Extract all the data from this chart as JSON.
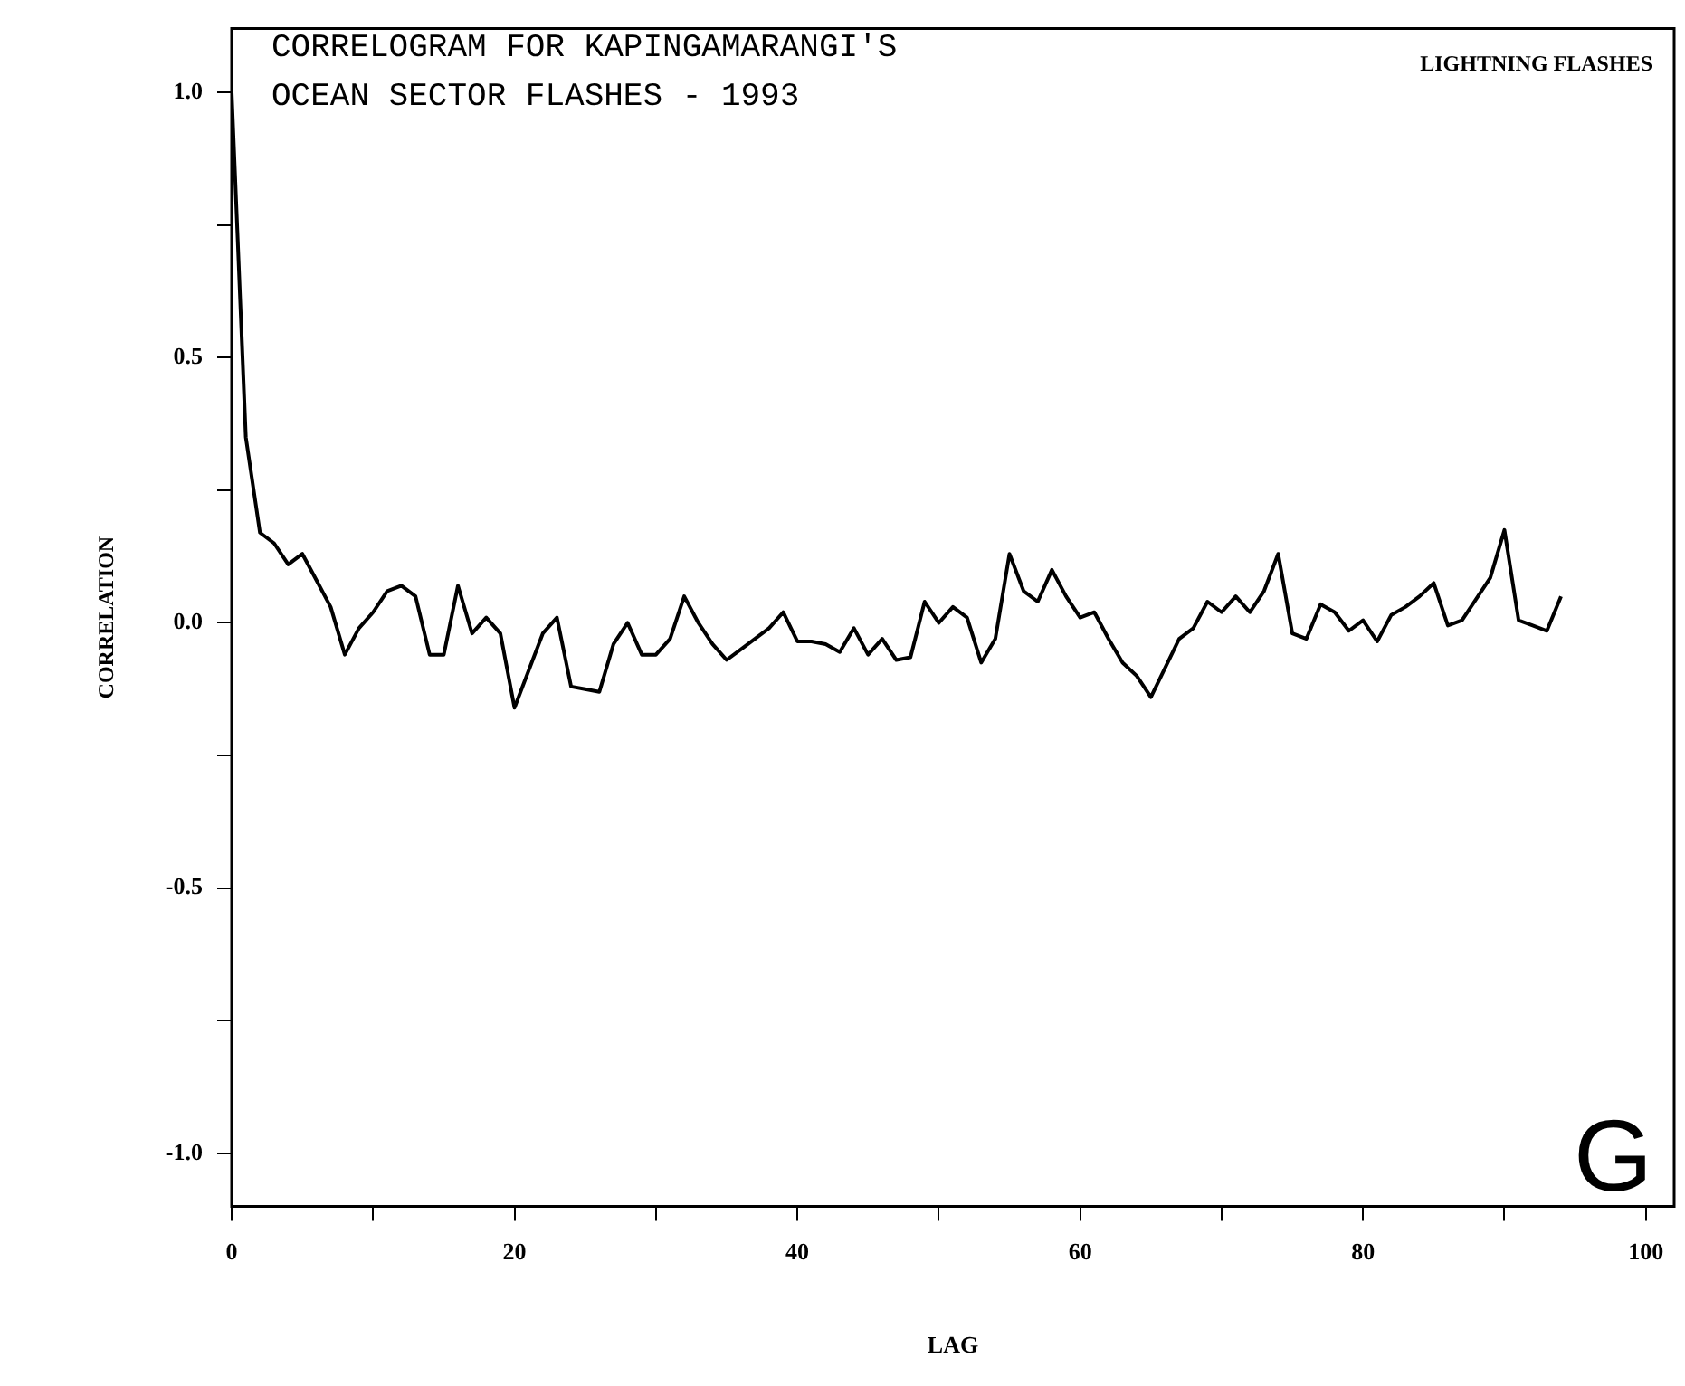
{
  "chart_data": {
    "type": "line",
    "title": "CORRELOGRAM FOR KAPINGAMARANGI'S OCEAN SECTOR FLASHES - 1993",
    "xlabel": "LAG",
    "ylabel": "CORRELATION",
    "annotations": [
      "LIGHTNING FLASHES",
      "G"
    ],
    "x": [
      0,
      1,
      2,
      3,
      4,
      5,
      6,
      7,
      8,
      9,
      10,
      11,
      12,
      13,
      14,
      15,
      16,
      17,
      18,
      19,
      20,
      21,
      22,
      23,
      24,
      25,
      26,
      27,
      28,
      29,
      30,
      31,
      32,
      33,
      34,
      35,
      36,
      37,
      38,
      39,
      40,
      41,
      42,
      43,
      44,
      45,
      46,
      47,
      48,
      49,
      50,
      51,
      52,
      53,
      54,
      55,
      56,
      57,
      58,
      59,
      60,
      61,
      62,
      63,
      64,
      65,
      66,
      67,
      68,
      69,
      70,
      71,
      72,
      73,
      74,
      75,
      76,
      77,
      78,
      79,
      80,
      81,
      82,
      83,
      84,
      85,
      86,
      87,
      88,
      89,
      90,
      91,
      92,
      93,
      94
    ],
    "series": [
      {
        "color": "#000000",
        "values": [
          1.0,
          0.35,
          0.17,
          0.15,
          0.11,
          0.13,
          0.08,
          0.03,
          -0.06,
          -0.01,
          0.02,
          0.06,
          0.07,
          0.05,
          -0.06,
          -0.06,
          0.07,
          -0.02,
          0.01,
          -0.02,
          -0.16,
          -0.09,
          -0.02,
          0.01,
          -0.12,
          -0.125,
          -0.13,
          -0.04,
          0.0,
          -0.06,
          -0.06,
          -0.03,
          0.05,
          0.0,
          -0.04,
          -0.07,
          -0.05,
          -0.03,
          -0.01,
          0.02,
          -0.035,
          -0.035,
          -0.04,
          -0.055,
          -0.01,
          -0.06,
          -0.03,
          -0.07,
          -0.065,
          0.04,
          0.0,
          0.03,
          0.01,
          -0.075,
          -0.03,
          0.13,
          0.06,
          0.04,
          0.1,
          0.05,
          0.01,
          0.02,
          -0.03,
          -0.075,
          -0.1,
          -0.14,
          -0.085,
          -0.03,
          -0.01,
          0.04,
          0.02,
          0.05,
          0.02,
          0.06,
          0.13,
          -0.02,
          -0.03,
          0.035,
          0.02,
          -0.015,
          0.005,
          -0.035,
          0.015,
          0.03,
          0.05,
          0.075,
          -0.005,
          0.005,
          0.045,
          0.085,
          0.175,
          0.005,
          -0.005,
          -0.015,
          0.05
        ]
      }
    ],
    "xlim": [
      0,
      102
    ],
    "xticks": [
      0,
      {
        "value": 10,
        "label": null
      },
      20,
      {
        "value": 30,
        "label": null
      },
      40,
      {
        "value": 50,
        "label": null
      },
      60,
      {
        "value": 70,
        "label": null
      },
      80,
      {
        "value": 90,
        "label": null
      },
      100
    ],
    "ylim": [
      -1.1,
      1.12
    ],
    "yticks": [
      {
        "value": -1,
        "label": "-1.0"
      },
      {
        "value": -0.75,
        "label": null
      },
      {
        "value": -0.5,
        "label": "-0.5"
      },
      {
        "value": -0.25,
        "label": null
      },
      {
        "value": 0,
        "label": "0.0"
      },
      {
        "value": 0.25,
        "label": null
      },
      {
        "value": 0.5,
        "label": "0.5"
      },
      {
        "value": 0.75,
        "label": null
      },
      {
        "value": 1,
        "label": "1.0"
      }
    ],
    "grid": false,
    "legend": false,
    "marker": "none",
    "line_style": "solid"
  }
}
